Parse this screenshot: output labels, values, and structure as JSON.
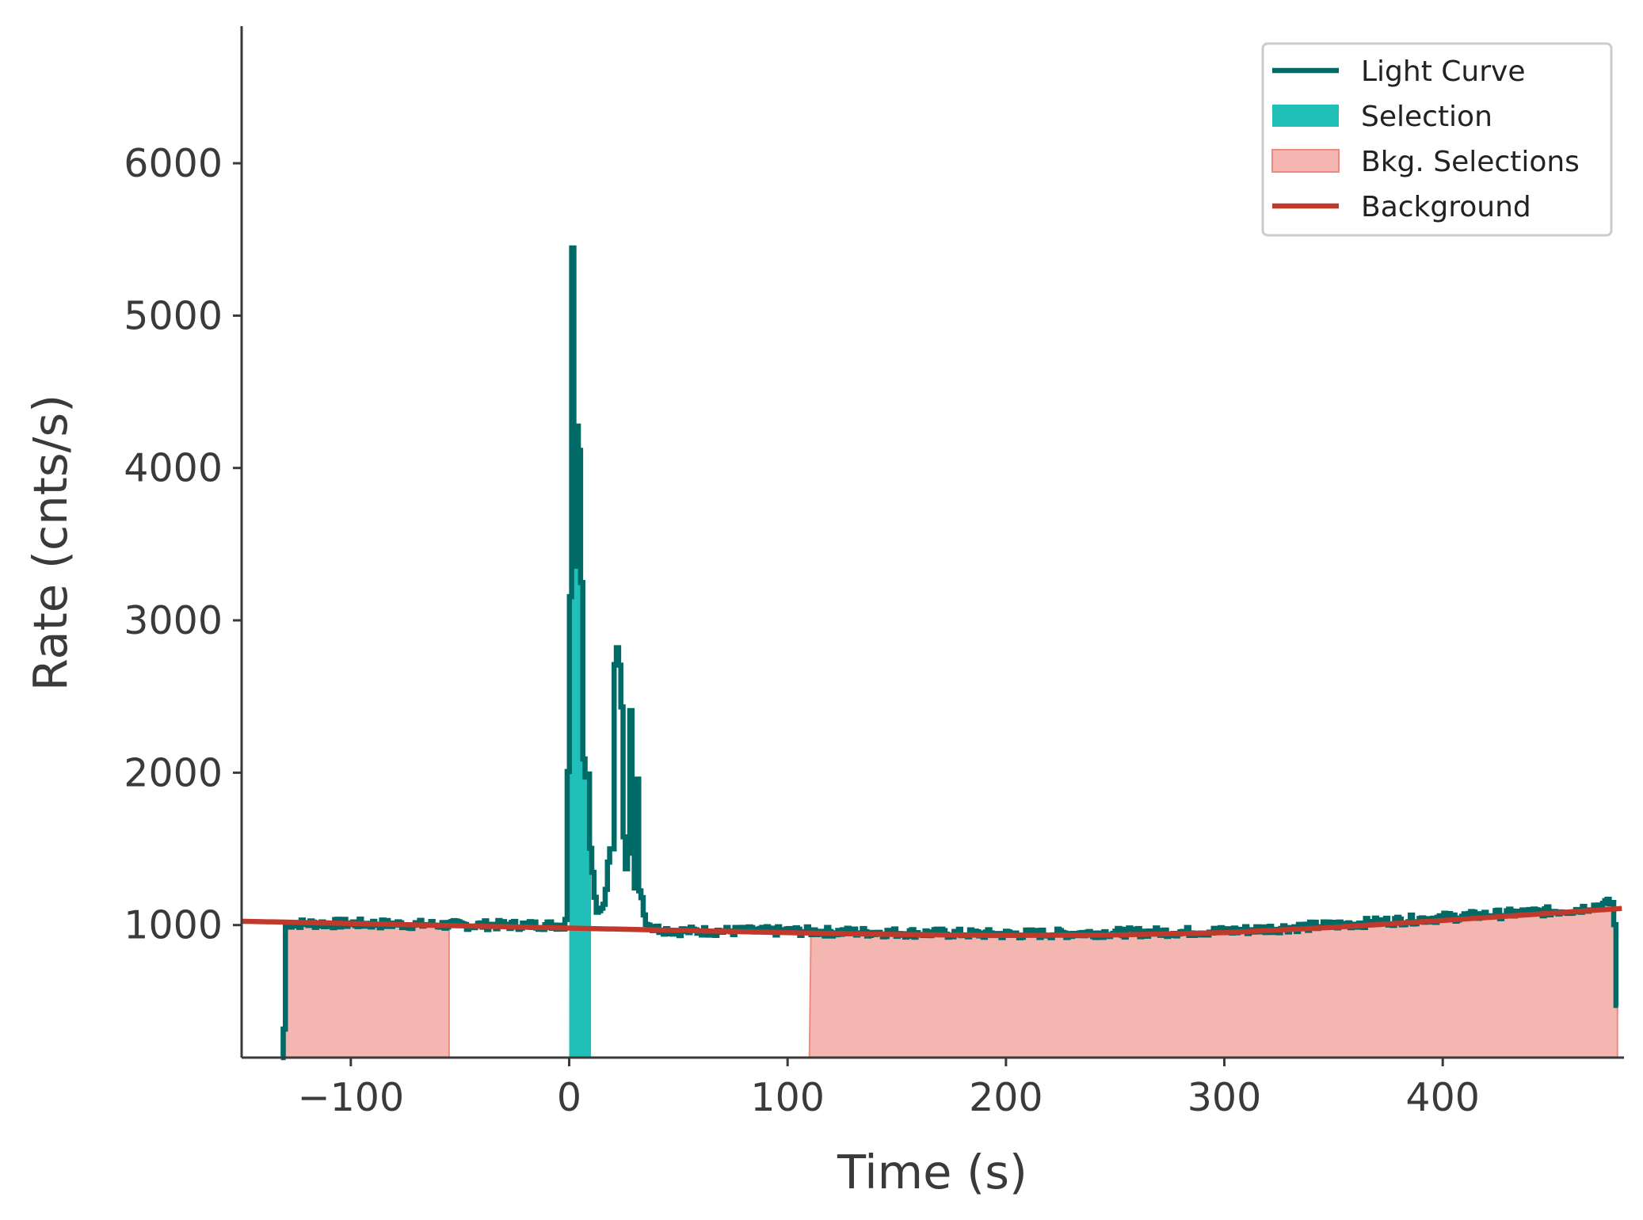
{
  "chart_data": {
    "type": "line",
    "title": "",
    "xlabel": "Time (s)",
    "ylabel": "Rate (cnts/s)",
    "xlim": [
      -150,
      483
    ],
    "ylim": [
      130,
      6900
    ],
    "xticks": [
      -100,
      0,
      100,
      200,
      300,
      400
    ],
    "xtick_labels": [
      "−100",
      "0",
      "100",
      "200",
      "300",
      "400"
    ],
    "yticks": [
      1000,
      2000,
      3000,
      4000,
      5000,
      6000
    ],
    "ytick_labels": [
      "1000",
      "2000",
      "3000",
      "4000",
      "5000",
      "6000"
    ],
    "grid": false,
    "legend_position": "top-right",
    "legend": [
      {
        "label": "Light Curve",
        "kind": "line",
        "color": "#006b66"
      },
      {
        "label": "Selection",
        "kind": "patch",
        "color": "#20c0b8"
      },
      {
        "label": "Bkg. Selections",
        "kind": "patch",
        "color": "#f4b6b1"
      },
      {
        "label": "Background",
        "kind": "line",
        "color": "#c0392b"
      }
    ],
    "selection": {
      "x": [
        0,
        10
      ],
      "color": "#20c0b8"
    },
    "bkg_selections": [
      {
        "x": [
          -130,
          -55
        ]
      },
      {
        "x": [
          110,
          480
        ]
      }
    ],
    "background": {
      "x": [
        -150,
        -100,
        -50,
        0,
        50,
        100,
        150,
        200,
        250,
        300,
        350,
        400,
        483
      ],
      "y": [
        1025,
        1010,
        995,
        980,
        965,
        950,
        938,
        932,
        935,
        950,
        985,
        1030,
        1110
      ],
      "color": "#c0392b"
    },
    "light_curve": {
      "color": "#006b66",
      "anchors": {
        "x": [
          -132,
          -131,
          -130,
          -100,
          -50,
          -10,
          -2,
          0,
          1,
          2,
          3,
          4,
          5,
          6,
          7,
          8,
          9,
          10,
          12,
          14,
          16,
          18,
          20,
          21,
          22,
          23,
          24,
          25,
          26,
          27,
          28,
          29,
          30,
          31,
          32,
          33,
          34,
          35,
          36,
          38,
          40,
          50,
          100,
          150,
          200,
          250,
          300,
          350,
          400,
          460,
          478,
          480
        ],
        "y": [
          130,
          300,
          1010,
          1010,
          1000,
          1000,
          1000,
          2880,
          5750,
          3200,
          4280,
          4250,
          3550,
          2150,
          1900,
          2170,
          1550,
          1400,
          1080,
          1100,
          1150,
          1500,
          1500,
          3600,
          2300,
          2950,
          2150,
          1300,
          1400,
          1500,
          2720,
          1600,
          1150,
          2140,
          1050,
          1200,
          1050,
          1000,
          1000,
          980,
          975,
          960,
          960,
          950,
          940,
          950,
          960,
          1000,
          1050,
          1100,
          1150,
          130
        ]
      }
    }
  }
}
